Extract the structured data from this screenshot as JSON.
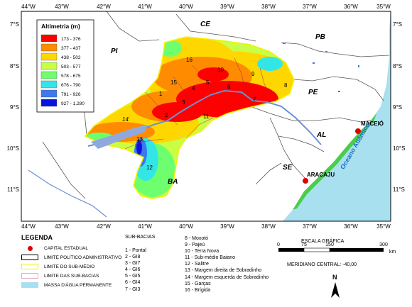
{
  "map": {
    "lon_ticks": [
      "44°W",
      "43°W",
      "42°W",
      "41°W",
      "40°W",
      "39°W",
      "38°W",
      "37°W",
      "36°W",
      "35°W"
    ],
    "lat_ticks": [
      "7°S",
      "8°S",
      "9°S",
      "10°S",
      "11°S"
    ],
    "state_labels": [
      "CE",
      "PB",
      "PI",
      "PE",
      "AL",
      "SE",
      "BA"
    ],
    "sub_basin_numbers": [
      "1",
      "2",
      "3",
      "4",
      "5",
      "6",
      "7",
      "8",
      "9",
      "10",
      "11",
      "12",
      "13",
      "14",
      "15",
      "16"
    ],
    "cities": [
      "MACEIÓ",
      "ARACAJU"
    ],
    "ocean_label": "Oceano Atlântico",
    "colors": {
      "ocean": "#a8e0f0",
      "land": "#ffffff",
      "basin_outline": "#f5f000",
      "state_border": "#555555",
      "capital": "#e00000",
      "river": "#6d8fd2"
    }
  },
  "altimetry": {
    "title": "Altimetria (m)",
    "classes": [
      {
        "range": "173 - 376",
        "color": "#ff0000"
      },
      {
        "range": "377 - 437",
        "color": "#ff8c00"
      },
      {
        "range": "438 - 502",
        "color": "#ffd700"
      },
      {
        "range": "503 - 577",
        "color": "#c8ff46"
      },
      {
        "range": "578 - 675",
        "color": "#6eff6e"
      },
      {
        "range": "676 - 790",
        "color": "#32e6e6"
      },
      {
        "range": "791 - 926",
        "color": "#3c78f0"
      },
      {
        "range": "927 - 1.280",
        "color": "#0a14dc"
      }
    ]
  },
  "legend": {
    "title": "LEGENDA",
    "items": [
      {
        "label": "CAPITAL ESTADUAL",
        "symbol": "red-dot-icon"
      },
      {
        "label": "LIMITE POLÍTICO ADMINISTRATIVO",
        "symbol": "black-outline-box"
      },
      {
        "label": "LIMITE DO SUB-MÉDIO",
        "symbol": "yellow-outline-box"
      },
      {
        "label": "LIMITE DAS SUB-BACIAS",
        "symbol": "pink-outline-box"
      },
      {
        "label": "MASSA D'ÁGUA PERMANENTE",
        "symbol": "light-blue-box"
      }
    ]
  },
  "sub_basins": {
    "title": "SUB-BACIAS",
    "col1": [
      "1 - Pontal",
      "2 - GI8",
      "3 - GI7",
      "4 - GI6",
      "5 - GI5",
      "6 - GI4",
      "7 - GI3"
    ],
    "col2": [
      "8 - Moxotó",
      "9 - Pajeú",
      "10 - Terra Nova",
      "11 - Sub-médio Baiano",
      "12 - Salitre",
      "13 - Margem direita de Sobradinho",
      "14 - Margem esquerda de Sobradinho",
      "15 - Garças",
      "16 - Brígida"
    ]
  },
  "scale": {
    "title": "ESCALA GRÁFICA",
    "ticks": [
      "0",
      "75",
      "150",
      "300"
    ],
    "unit": "km",
    "meridian": "MERIDIANO CENTRAL: -40,00"
  },
  "north_arrow": "N"
}
